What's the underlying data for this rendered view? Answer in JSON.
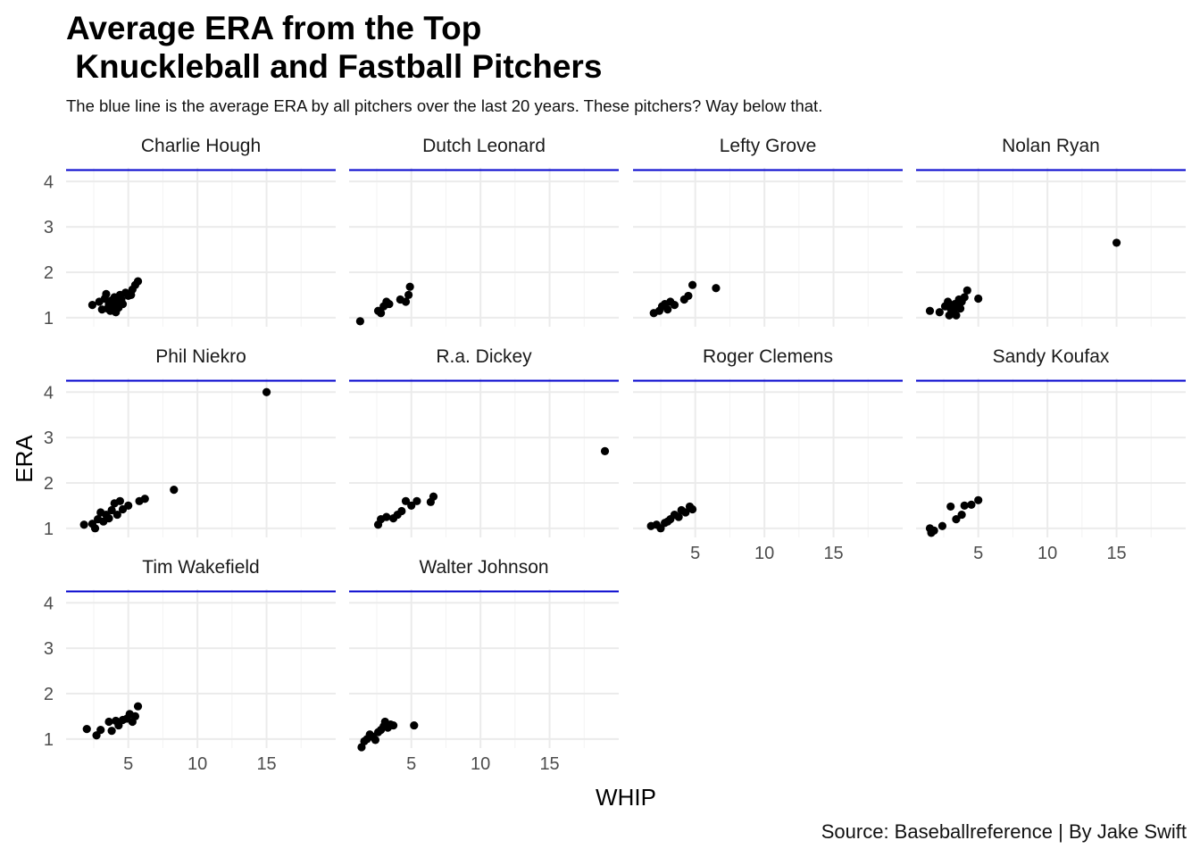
{
  "title": "Average ERA from the Top\n Knuckleball and Fastball Pitchers",
  "subtitle": "The blue line is the average ERA by all pitchers over the last 20 years. These pitchers? Way below that.",
  "caption": "Source: Baseballreference | By Jake Swift",
  "colors": {
    "reference_line": "#0000CD",
    "points": "#000000",
    "grid": "#EBEBEB"
  },
  "chart_data": {
    "type": "scatter",
    "xlabel": "WHIP",
    "ylabel": "ERA",
    "xlim": [
      0.5,
      20
    ],
    "ylim": [
      0.8,
      4.3
    ],
    "x_ticks": [
      5,
      10,
      15
    ],
    "y_ticks": [
      1,
      2,
      3,
      4
    ],
    "grid": true,
    "reference_line_y": 4.25,
    "panels": [
      {
        "name": "Charlie Hough",
        "points": [
          [
            2.4,
            1.28
          ],
          [
            2.9,
            1.35
          ],
          [
            3.1,
            1.18
          ],
          [
            3.3,
            1.42
          ],
          [
            3.4,
            1.52
          ],
          [
            3.5,
            1.2
          ],
          [
            3.6,
            1.3
          ],
          [
            3.7,
            1.15
          ],
          [
            3.8,
            1.38
          ],
          [
            3.9,
            1.25
          ],
          [
            4.0,
            1.45
          ],
          [
            4.1,
            1.12
          ],
          [
            4.2,
            1.33
          ],
          [
            4.3,
            1.22
          ],
          [
            4.4,
            1.5
          ],
          [
            4.5,
            1.4
          ],
          [
            4.6,
            1.3
          ],
          [
            4.8,
            1.55
          ],
          [
            5.0,
            1.48
          ],
          [
            5.3,
            1.62
          ],
          [
            5.5,
            1.72
          ],
          [
            5.7,
            1.8
          ],
          [
            5.2,
            1.5
          ]
        ]
      },
      {
        "name": "Dutch Leonard",
        "points": [
          [
            1.3,
            0.92
          ],
          [
            2.6,
            1.15
          ],
          [
            2.8,
            1.1
          ],
          [
            3.0,
            1.25
          ],
          [
            3.2,
            1.35
          ],
          [
            3.4,
            1.3
          ],
          [
            4.2,
            1.4
          ],
          [
            4.6,
            1.35
          ],
          [
            4.8,
            1.5
          ],
          [
            4.9,
            1.68
          ]
        ]
      },
      {
        "name": "Lefty Grove",
        "points": [
          [
            2.0,
            1.1
          ],
          [
            2.4,
            1.15
          ],
          [
            2.6,
            1.25
          ],
          [
            2.8,
            1.3
          ],
          [
            3.0,
            1.18
          ],
          [
            3.2,
            1.35
          ],
          [
            3.5,
            1.28
          ],
          [
            4.2,
            1.4
          ],
          [
            4.5,
            1.48
          ],
          [
            4.8,
            1.72
          ],
          [
            6.5,
            1.65
          ]
        ]
      },
      {
        "name": "Nolan Ryan",
        "points": [
          [
            1.5,
            1.15
          ],
          [
            2.2,
            1.12
          ],
          [
            2.6,
            1.25
          ],
          [
            2.8,
            1.35
          ],
          [
            2.9,
            1.05
          ],
          [
            3.0,
            1.2
          ],
          [
            3.2,
            1.15
          ],
          [
            3.3,
            1.3
          ],
          [
            3.4,
            1.05
          ],
          [
            3.5,
            1.25
          ],
          [
            3.6,
            1.4
          ],
          [
            3.7,
            1.2
          ],
          [
            3.8,
            1.35
          ],
          [
            4.0,
            1.45
          ],
          [
            4.2,
            1.6
          ],
          [
            5.0,
            1.42
          ],
          [
            15.0,
            2.65
          ]
        ]
      },
      {
        "name": "Phil Niekro",
        "points": [
          [
            1.8,
            1.08
          ],
          [
            2.4,
            1.1
          ],
          [
            2.6,
            1.0
          ],
          [
            2.8,
            1.2
          ],
          [
            3.0,
            1.35
          ],
          [
            3.2,
            1.15
          ],
          [
            3.4,
            1.3
          ],
          [
            3.6,
            1.22
          ],
          [
            3.8,
            1.4
          ],
          [
            4.0,
            1.55
          ],
          [
            4.2,
            1.3
          ],
          [
            4.4,
            1.6
          ],
          [
            4.6,
            1.42
          ],
          [
            5.0,
            1.5
          ],
          [
            5.8,
            1.6
          ],
          [
            6.2,
            1.65
          ],
          [
            8.3,
            1.85
          ],
          [
            15.0,
            4.0
          ]
        ]
      },
      {
        "name": "R.a. Dickey",
        "points": [
          [
            2.6,
            1.08
          ],
          [
            2.8,
            1.2
          ],
          [
            3.2,
            1.25
          ],
          [
            3.7,
            1.22
          ],
          [
            4.0,
            1.3
          ],
          [
            4.3,
            1.38
          ],
          [
            4.6,
            1.6
          ],
          [
            5.0,
            1.5
          ],
          [
            5.4,
            1.6
          ],
          [
            6.4,
            1.58
          ],
          [
            6.6,
            1.7
          ],
          [
            19.0,
            2.7
          ]
        ]
      },
      {
        "name": "Roger Clemens",
        "points": [
          [
            1.8,
            1.05
          ],
          [
            2.2,
            1.08
          ],
          [
            2.5,
            1.0
          ],
          [
            2.8,
            1.12
          ],
          [
            3.0,
            1.15
          ],
          [
            3.2,
            1.2
          ],
          [
            3.5,
            1.3
          ],
          [
            3.8,
            1.25
          ],
          [
            4.0,
            1.4
          ],
          [
            4.3,
            1.35
          ],
          [
            4.6,
            1.48
          ],
          [
            4.8,
            1.42
          ]
        ]
      },
      {
        "name": "Sandy Koufax",
        "points": [
          [
            1.5,
            1.0
          ],
          [
            1.6,
            0.9
          ],
          [
            1.8,
            0.95
          ],
          [
            2.4,
            1.05
          ],
          [
            3.0,
            1.48
          ],
          [
            3.4,
            1.2
          ],
          [
            3.8,
            1.3
          ],
          [
            4.0,
            1.5
          ],
          [
            4.5,
            1.52
          ],
          [
            5.0,
            1.62
          ]
        ]
      },
      {
        "name": "Tim Wakefield",
        "points": [
          [
            2.0,
            1.22
          ],
          [
            2.7,
            1.08
          ],
          [
            3.0,
            1.2
          ],
          [
            3.6,
            1.38
          ],
          [
            3.8,
            1.18
          ],
          [
            4.1,
            1.4
          ],
          [
            4.3,
            1.3
          ],
          [
            4.6,
            1.42
          ],
          [
            4.9,
            1.45
          ],
          [
            5.1,
            1.55
          ],
          [
            5.3,
            1.38
          ],
          [
            5.5,
            1.5
          ],
          [
            5.7,
            1.72
          ]
        ]
      },
      {
        "name": "Walter Johnson",
        "points": [
          [
            1.4,
            0.82
          ],
          [
            1.6,
            0.95
          ],
          [
            1.8,
            1.0
          ],
          [
            2.0,
            1.1
          ],
          [
            2.2,
            1.05
          ],
          [
            2.4,
            0.98
          ],
          [
            2.6,
            1.15
          ],
          [
            2.8,
            1.2
          ],
          [
            3.0,
            1.28
          ],
          [
            3.1,
            1.38
          ],
          [
            3.3,
            1.25
          ],
          [
            3.5,
            1.32
          ],
          [
            3.7,
            1.3
          ],
          [
            5.2,
            1.3
          ]
        ]
      }
    ]
  }
}
